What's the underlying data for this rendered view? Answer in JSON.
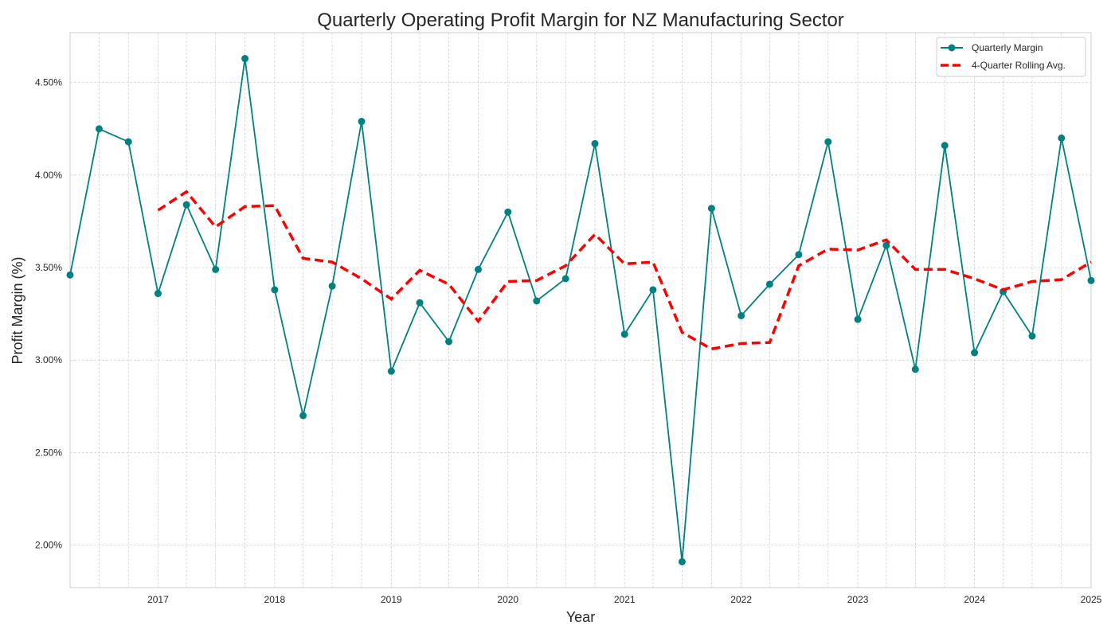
{
  "chart_data": {
    "type": "line",
    "title": "Quarterly Operating Profit Margin for NZ Manufacturing Sector",
    "xlabel": "Year",
    "ylabel": "Profit Margin (%)",
    "x": [
      "2016-03-31",
      "2016-06-30",
      "2016-09-30",
      "2016-12-31",
      "2017-03-31",
      "2017-06-30",
      "2017-09-30",
      "2017-12-31",
      "2018-03-31",
      "2018-06-30",
      "2018-09-30",
      "2018-12-31",
      "2019-03-31",
      "2019-06-30",
      "2019-09-30",
      "2019-12-31",
      "2020-03-31",
      "2020-06-30",
      "2020-09-30",
      "2020-12-31",
      "2021-03-31",
      "2021-06-30",
      "2021-09-30",
      "2021-12-31",
      "2022-03-31",
      "2022-06-30",
      "2022-09-30",
      "2022-12-31",
      "2023-03-31",
      "2023-06-30",
      "2023-09-30",
      "2023-12-31",
      "2024-03-31",
      "2024-06-30",
      "2024-09-30",
      "2024-12-31"
    ],
    "series": [
      {
        "name": "Quarterly Margin",
        "color": "#008080",
        "style": "solid-markers",
        "values": [
          3.46,
          4.25,
          4.18,
          3.36,
          3.84,
          3.49,
          4.63,
          3.38,
          2.7,
          3.4,
          4.29,
          2.94,
          3.31,
          3.1,
          3.49,
          3.8,
          3.32,
          3.44,
          4.17,
          3.14,
          3.38,
          1.91,
          3.82,
          3.24,
          3.41,
          3.57,
          4.18,
          3.22,
          3.62,
          2.95,
          4.16,
          3.04,
          3.37,
          3.13,
          4.2,
          3.43
        ]
      },
      {
        "name": "4-Quarter Rolling Avg.",
        "color": "#ff0000",
        "style": "dashed",
        "values": [
          null,
          null,
          null,
          3.81,
          3.91,
          3.72,
          3.83,
          3.835,
          3.55,
          3.53,
          3.44,
          3.33,
          3.485,
          3.41,
          3.21,
          3.425,
          3.43,
          3.51,
          3.68,
          3.52,
          3.53,
          3.15,
          3.06,
          3.09,
          3.095,
          3.51,
          3.6,
          3.595,
          3.65,
          3.49,
          3.49,
          3.44,
          3.38,
          3.425,
          3.435,
          3.53
        ]
      }
    ],
    "xticks": [
      "2017",
      "2018",
      "2019",
      "2020",
      "2021",
      "2022",
      "2023",
      "2024",
      "2025"
    ],
    "yticks": [
      "2.00%",
      "2.50%",
      "3.00%",
      "3.50%",
      "4.00%",
      "4.50%"
    ],
    "ytick_values": [
      2.0,
      2.5,
      3.0,
      3.5,
      4.0,
      4.5
    ],
    "xlim": [
      "2016-03-31",
      "2024-12-31"
    ],
    "ylim": [
      1.77,
      4.77
    ],
    "grid": true,
    "legend": "top-right"
  }
}
